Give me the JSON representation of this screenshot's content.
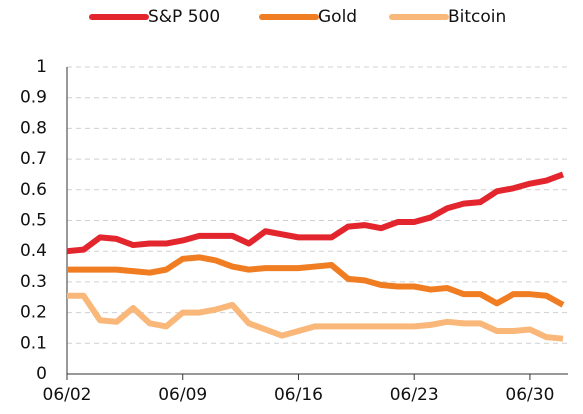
{
  "chart_data": {
    "type": "line",
    "categories": [
      "06/02",
      null,
      null,
      null,
      null,
      null,
      null,
      "06/09",
      null,
      null,
      null,
      null,
      null,
      null,
      "06/16",
      null,
      null,
      null,
      null,
      null,
      null,
      "06/23",
      null,
      null,
      null,
      null,
      null,
      null,
      "06/30",
      null,
      null
    ],
    "series": [
      {
        "name": "S&P 500",
        "color": "#e3262e",
        "values": [
          0.4,
          0.405,
          0.445,
          0.44,
          0.42,
          0.425,
          0.425,
          0.435,
          0.45,
          0.45,
          0.45,
          0.425,
          0.465,
          0.455,
          0.445,
          0.445,
          0.445,
          0.48,
          0.485,
          0.475,
          0.495,
          0.495,
          0.51,
          0.54,
          0.555,
          0.56,
          0.595,
          0.605,
          0.62,
          0.63,
          0.65
        ]
      },
      {
        "name": "Gold",
        "color": "#f07d22",
        "values": [
          0.34,
          0.34,
          0.34,
          0.34,
          0.335,
          0.33,
          0.34,
          0.375,
          0.38,
          0.37,
          0.35,
          0.34,
          0.345,
          0.345,
          0.345,
          0.35,
          0.355,
          0.31,
          0.305,
          0.29,
          0.285,
          0.285,
          0.275,
          0.28,
          0.26,
          0.26,
          0.23,
          0.26,
          0.26,
          0.255,
          0.225
        ]
      },
      {
        "name": "Bitcoin",
        "color": "#f9b77a",
        "values": [
          0.255,
          0.255,
          0.175,
          0.17,
          0.215,
          0.165,
          0.155,
          0.2,
          0.2,
          0.21,
          0.225,
          0.165,
          0.145,
          0.125,
          0.14,
          0.155,
          0.155,
          0.155,
          0.155,
          0.155,
          0.155,
          0.155,
          0.16,
          0.17,
          0.165,
          0.165,
          0.14,
          0.14,
          0.145,
          0.12,
          0.115
        ]
      }
    ],
    "ylim": [
      0,
      1
    ],
    "yticks": [
      0,
      0.1,
      0.2,
      0.3,
      0.4,
      0.5,
      0.6,
      0.7,
      0.8,
      0.9,
      1
    ],
    "grid": true,
    "legend": "top"
  }
}
